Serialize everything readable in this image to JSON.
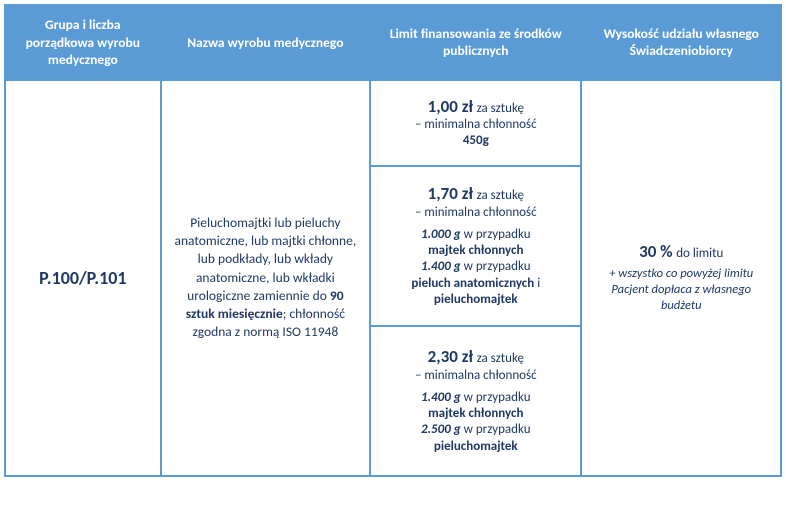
{
  "colors": {
    "border": "#5b9bd5",
    "header_bg": "#5b9bd5",
    "header_fg": "#ffffff",
    "body_fg": "#1f3864"
  },
  "headers": {
    "col_a": "Grupa i liczba porządkowa wyrobu medycznego",
    "col_b": "Nazwa wyrobu medycznego",
    "col_c": "Limit finansowania ze środków publicznych",
    "col_d": "Wysokość udziału własnego Świadczeniobiorcy"
  },
  "code": "P.100/P.101",
  "desc": {
    "pre": "Pieluchomajtki lub pieluchy anatomiczne, lub majtki chłonne, lub podkłady, lub wkłady anatomiczne, lub wkładki urologiczne zamiennie do",
    "bold": "90 sztuk miesięcznie",
    "post": "; chłonność zgodna z normą ISO 11948"
  },
  "tiers": {
    "t1": {
      "price": "1,00 zł",
      "per": "za sztukę",
      "line": "– minimalna chłonność",
      "val": "450g"
    },
    "t2": {
      "price": "1,70 zł",
      "per": "za sztukę",
      "line": "– minimalna chłonność",
      "v1": "1.000 g",
      "v1_case": "w przypadku",
      "v1_item": "majtek chłonnych",
      "v2": "1.400 g",
      "v2_case": "w przypadku",
      "v2_item_a": "pieluch anatomicznych",
      "v2_and": "i",
      "v2_item_b": "pieluchomajtek"
    },
    "t3": {
      "price": "2,30 zł",
      "per": "za sztukę",
      "line": "– minimalna chłonność",
      "v1": "1.400 g",
      "v1_case": "w przypadku",
      "v1_item": "majtek chłonnych",
      "v2": "2.500 g",
      "v2_case": "w przypadku",
      "v2_item": "pieluchomajtek"
    }
  },
  "share": {
    "pct": "30 %",
    "to": "do limitu",
    "note": "+ wszystko co powyżej limitu Pacjent dopłaca z własnego budżetu"
  }
}
